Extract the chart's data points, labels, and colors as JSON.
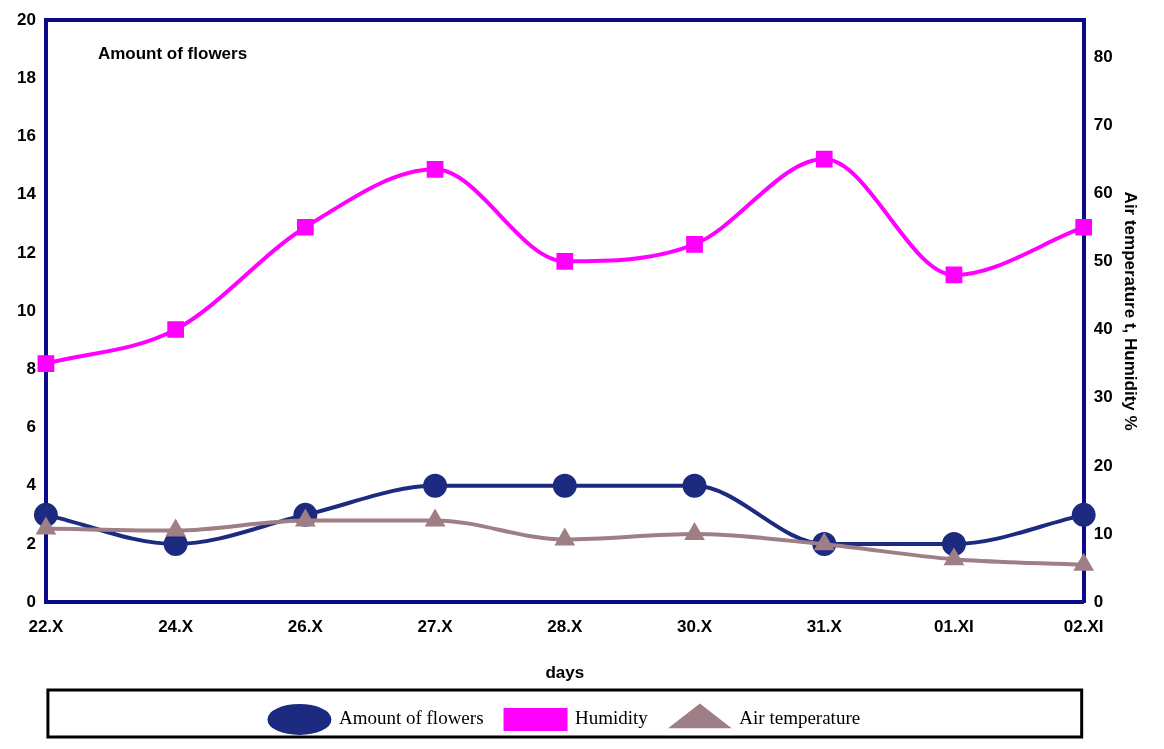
{
  "chart_data": {
    "type": "line",
    "xlabel": "days",
    "y2label": "Air temperature t, Humidity %",
    "annotations": [
      "Amount of flowers"
    ],
    "categories": [
      "22.X",
      "24.X",
      "26.X",
      "27.X",
      "28.X",
      "30.X",
      "31.X",
      "01.XI",
      "02.XI"
    ],
    "series": [
      {
        "name": "Amount of flowers",
        "color": "#1c2a80",
        "marker": "circle",
        "values": [
          3,
          2,
          3,
          4,
          4,
          4,
          2,
          2,
          3
        ]
      },
      {
        "name": "Humidity",
        "color": "#ff00ff",
        "marker": "square",
        "axis": "y2",
        "values": [
          35,
          40,
          55,
          63.5,
          50,
          52.5,
          65,
          48,
          55
        ]
      },
      {
        "name": "Air temperature",
        "color": "#9e7f86",
        "marker": "triangle",
        "axis": "y2",
        "values": [
          10.8,
          10.5,
          12,
          12,
          9.2,
          10,
          8.5,
          6.3,
          5.5
        ]
      }
    ],
    "ylim": [
      0,
      20
    ],
    "yticks": [
      0,
      2,
      4,
      6,
      8,
      10,
      12,
      14,
      16,
      18,
      20
    ],
    "y2lim": [
      0,
      85.4
    ],
    "y2ticks": [
      0,
      10,
      20,
      30,
      40,
      50,
      60,
      70,
      80
    ],
    "grid": false,
    "legend": "bottom"
  }
}
